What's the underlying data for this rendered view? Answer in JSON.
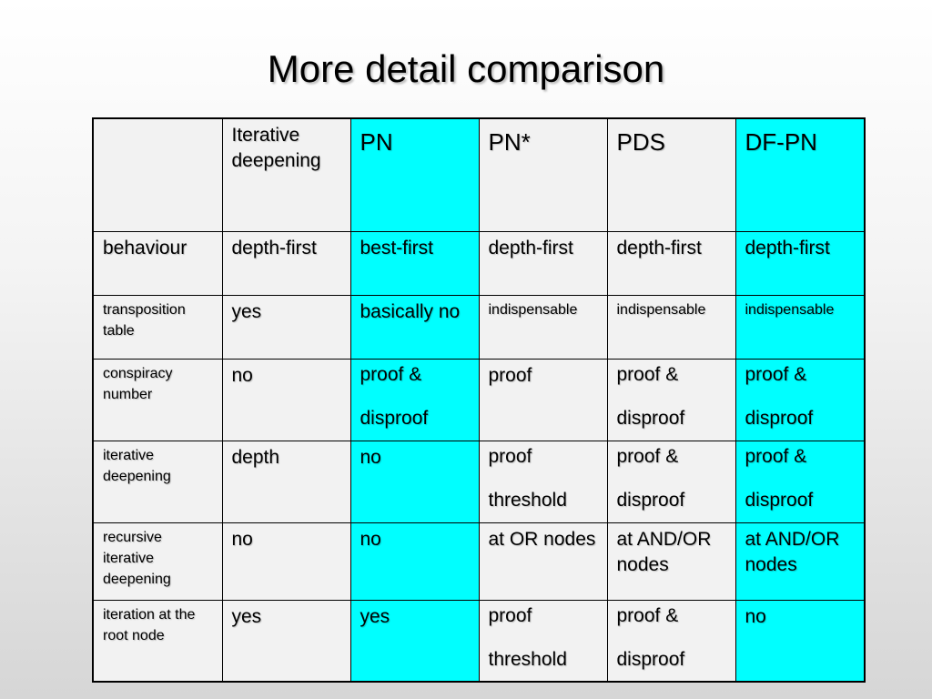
{
  "title": "More detail comparison",
  "table": {
    "columns": [
      "",
      "Iterative deepening",
      "PN",
      "PN*",
      "PDS",
      "DF-PN"
    ],
    "rows": [
      {
        "label": "behaviour",
        "cells": [
          "depth-first",
          "best-first",
          "depth-first",
          "depth-first",
          "depth-first"
        ]
      },
      {
        "label": "transposition table",
        "cells": [
          "yes",
          "basically no",
          "indispensable",
          "indispensable",
          "indispensable"
        ]
      },
      {
        "label": "conspiracy number",
        "cells": [
          "no",
          [
            "proof &",
            "disproof"
          ],
          "proof",
          [
            "proof &",
            "disproof"
          ],
          [
            "proof &",
            "disproof"
          ]
        ]
      },
      {
        "label": "iterative deepening",
        "cells": [
          "depth",
          "no",
          [
            "proof",
            "threshold"
          ],
          [
            "proof &",
            "disproof"
          ],
          [
            "proof &",
            "disproof"
          ]
        ]
      },
      {
        "label": "recursive iterative deepening",
        "cells": [
          "no",
          "no",
          "at OR nodes",
          "at AND/OR nodes",
          "at AND/OR nodes"
        ]
      },
      {
        "label": "iteration at the root node",
        "cells": [
          "yes",
          "yes",
          [
            "proof",
            "threshold"
          ],
          [
            "proof &",
            "disproof"
          ],
          "no"
        ]
      }
    ]
  },
  "colors": {
    "cyan": "#00ffff",
    "white": "#f2f2f2",
    "border": "#000000"
  }
}
